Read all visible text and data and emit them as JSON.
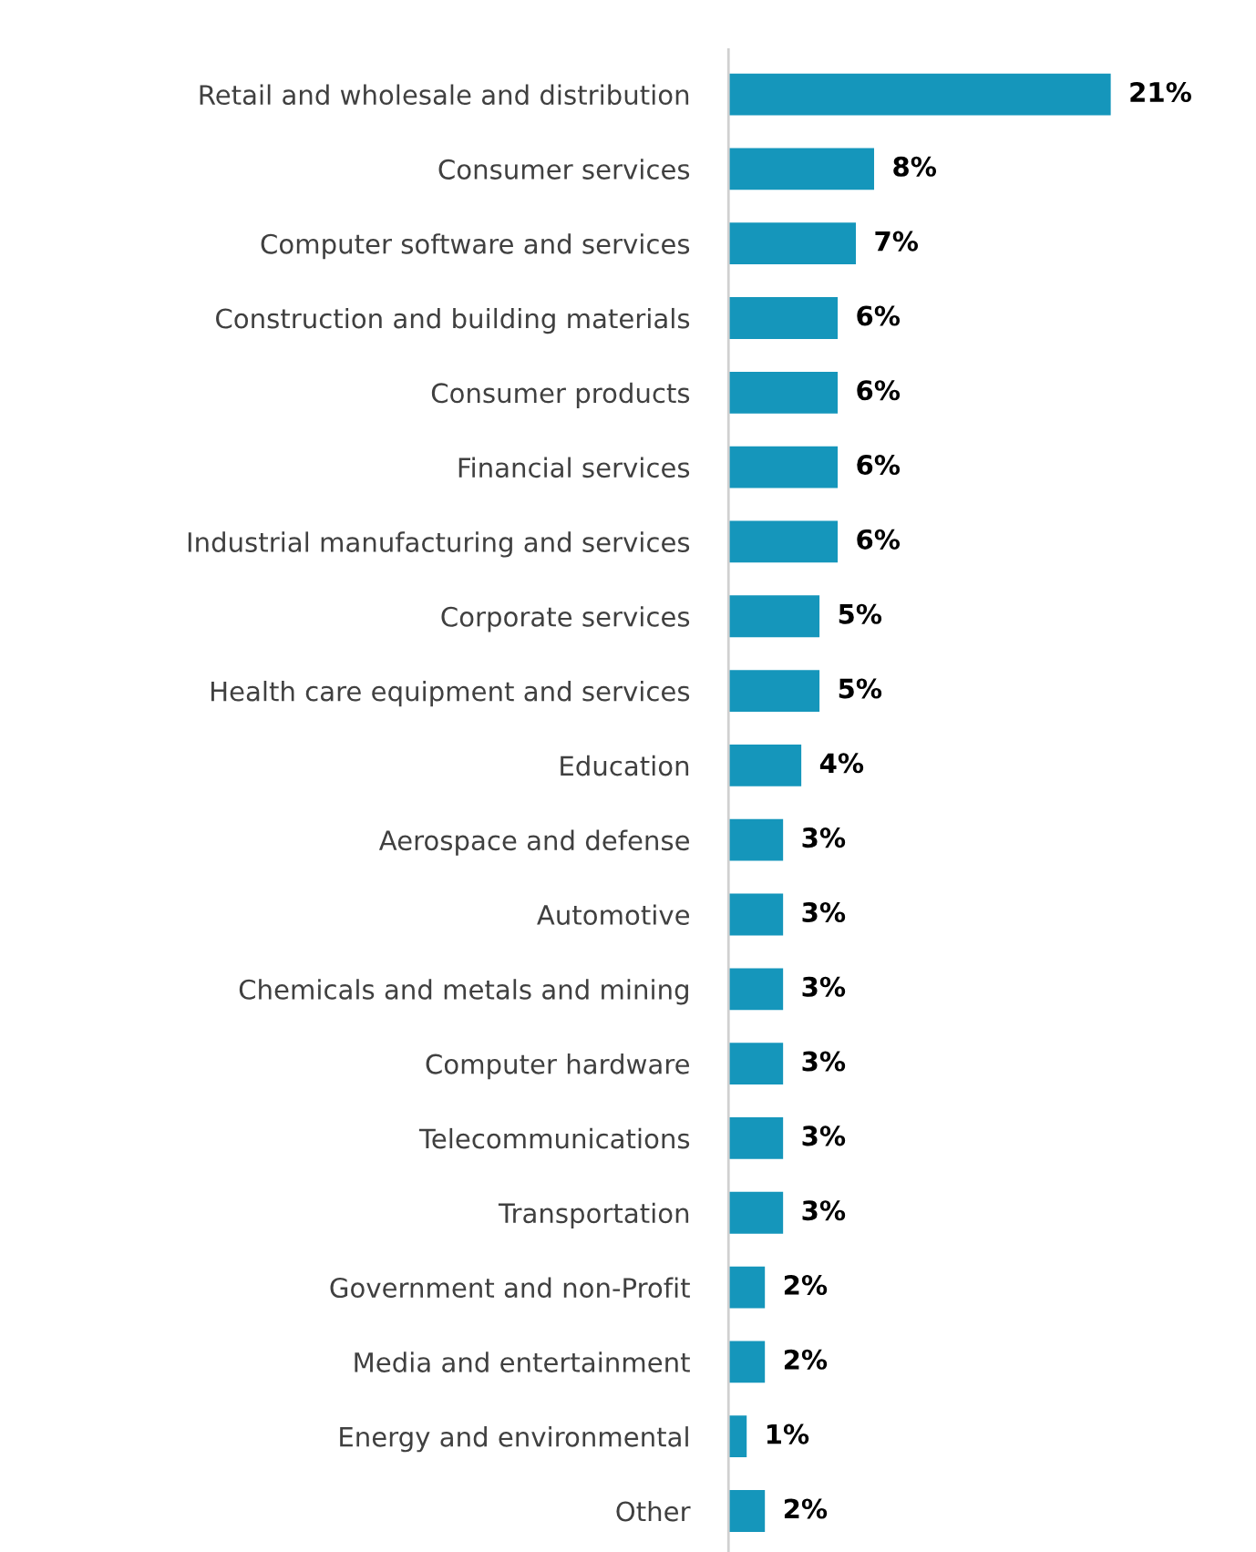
{
  "chart_data": {
    "type": "bar",
    "orientation": "horizontal",
    "categories": [
      "Retail and wholesale and distribution",
      "Consumer services",
      "Computer software and services",
      "Construction and building materials",
      "Consumer products",
      "Financial services",
      "Industrial manufacturing and services",
      "Corporate services",
      "Health care equipment and services",
      "Education",
      "Aerospace and defense",
      "Automotive",
      "Chemicals and metals and mining",
      "Computer hardware",
      "Telecommunications",
      "Transportation",
      "Government and non-Profit",
      "Media and entertainment",
      "Energy and environmental",
      "Other"
    ],
    "values": [
      21,
      8,
      7,
      6,
      6,
      6,
      6,
      5,
      5,
      4,
      3,
      3,
      3,
      3,
      3,
      3,
      2,
      2,
      1,
      2
    ],
    "value_labels": [
      "21%",
      "8%",
      "7%",
      "6%",
      "6%",
      "6%",
      "6%",
      "5%",
      "5%",
      "4%",
      "3%",
      "3%",
      "3%",
      "3%",
      "3%",
      "3%",
      "2%",
      "2%",
      "1%",
      "2%"
    ],
    "color": "#1596bb",
    "grid": false,
    "legend": false
  }
}
